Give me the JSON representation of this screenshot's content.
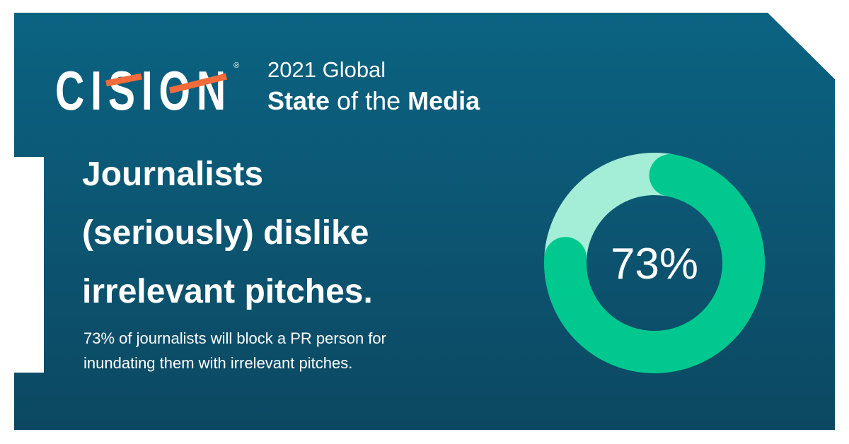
{
  "header": {
    "logo": "CISION",
    "trademark": "®",
    "kicker": "2021 Global",
    "title_part1": "State",
    "title_part2": "of the",
    "title_part3": "Media"
  },
  "headline": [
    "Journalists",
    "(seriously) dislike",
    "irrelevant pitches."
  ],
  "body": [
    "73% of journalists will block a PR person for",
    "inundating them with irrelevant pitches."
  ],
  "chart_data": {
    "type": "donut",
    "values": [
      73,
      27
    ],
    "value_labels": [
      "73%",
      null
    ],
    "colors": [
      "#00c88e",
      "#a4edd7"
    ]
  }
}
